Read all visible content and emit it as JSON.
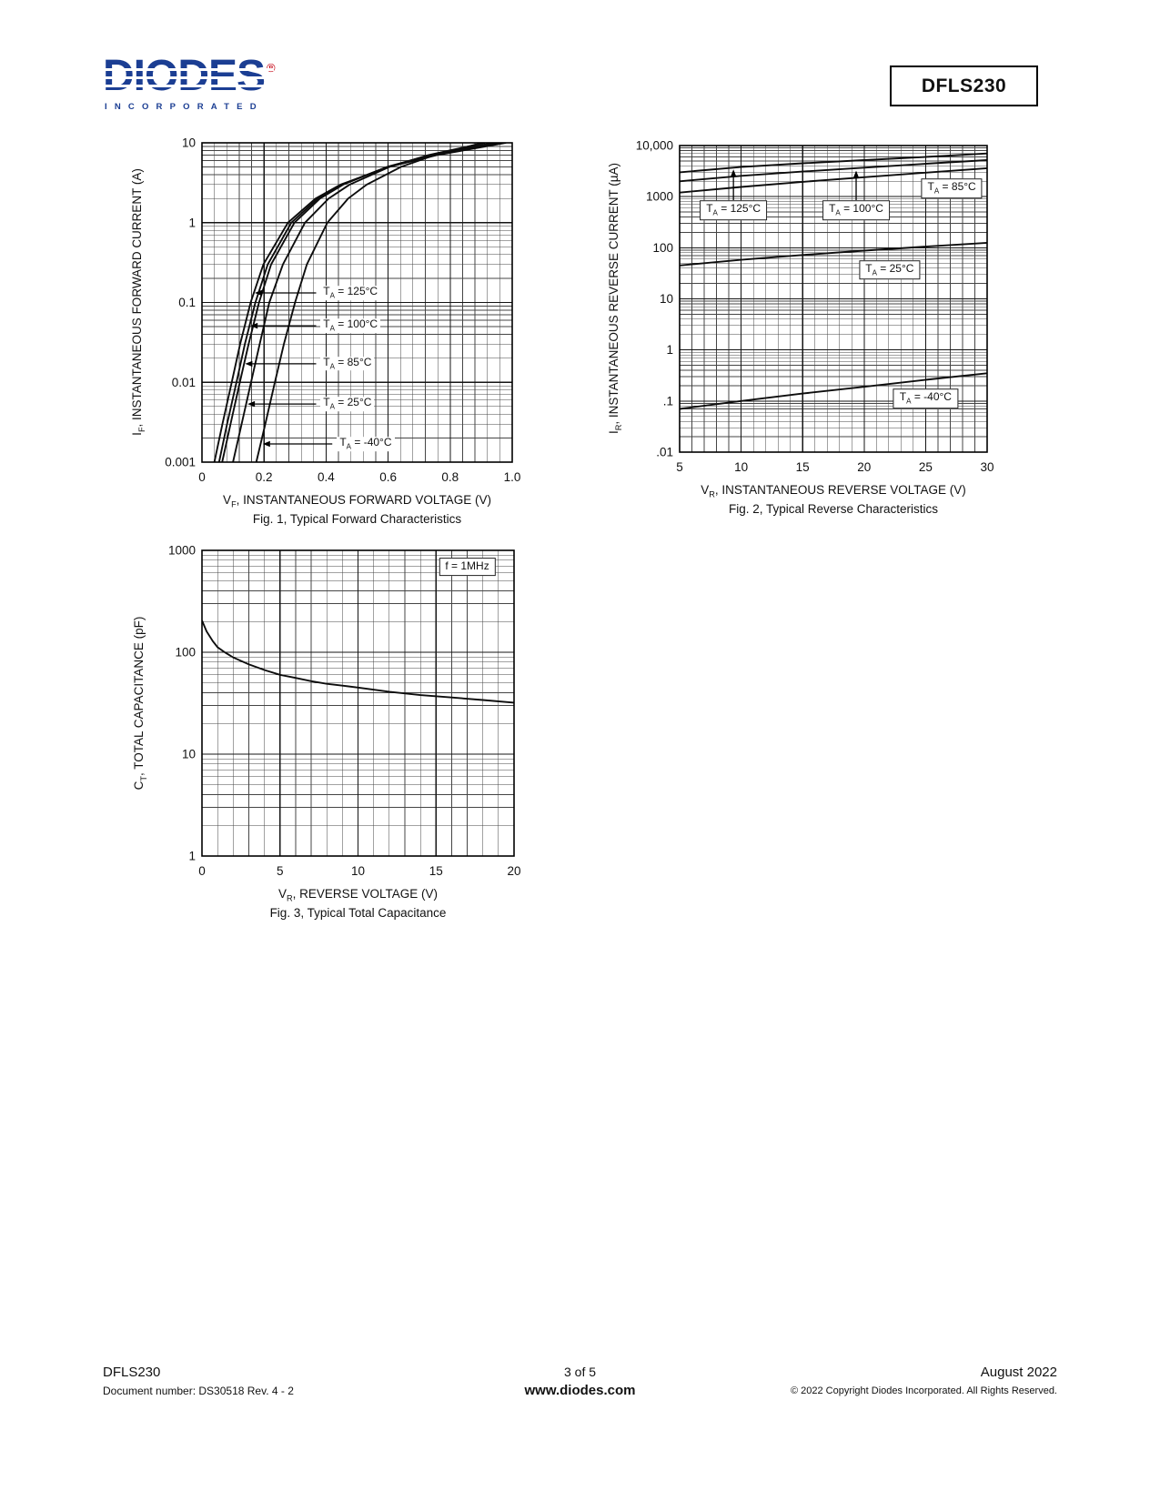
{
  "header": {
    "logo_brand": "DIODES",
    "logo_registered": "®",
    "logo_sub": "INCORPORATED",
    "part_number": "DFLS230"
  },
  "footer": {
    "part": "DFLS230",
    "doc": "Document number: DS30518 Rev. 4 - 2",
    "page": "3 of 5",
    "site": "www.diodes.com",
    "date": "August 2022",
    "copyright": "© 2022 Copyright Diodes Incorporated. All Rights Reserved."
  },
  "chart_data": [
    {
      "id": "fig1",
      "type": "line",
      "caption": "Fig. 1, Typical Forward Characteristics",
      "xlabel_parts": [
        {
          "t": "V"
        },
        {
          "t": "F",
          "sub": true
        },
        {
          "t": ", INSTANTANEOUS FORWARD VOLTAGE (V)"
        }
      ],
      "ylabel_parts": [
        {
          "t": "I"
        },
        {
          "t": "F",
          "sub": true
        },
        {
          "t": ", INSTANTANEOUS FORWARD CURRENT (A)"
        }
      ],
      "x_scale": "linear",
      "y_scale": "log",
      "xlim": [
        0,
        1.0
      ],
      "ylim": [
        0.001,
        10
      ],
      "x_minor_step": 0.04,
      "x_ticks": [
        {
          "v": 0,
          "l": "0"
        },
        {
          "v": 0.2,
          "l": "0.2"
        },
        {
          "v": 0.4,
          "l": "0.4"
        },
        {
          "v": 0.6,
          "l": "0.6"
        },
        {
          "v": 0.8,
          "l": "0.8"
        },
        {
          "v": 1.0,
          "l": "1.0"
        }
      ],
      "y_ticks": [
        {
          "v": 0.001,
          "l": "0.001"
        },
        {
          "v": 0.01,
          "l": "0.01"
        },
        {
          "v": 0.1,
          "l": "0.1"
        },
        {
          "v": 1,
          "l": "1"
        },
        {
          "v": 10,
          "l": "10"
        }
      ],
      "series": [
        {
          "name": "TA = 125°C",
          "points": [
            [
              0.04,
              0.001
            ],
            [
              0.066,
              0.003
            ],
            [
              0.096,
              0.01
            ],
            [
              0.123,
              0.03
            ],
            [
              0.157,
              0.1
            ],
            [
              0.198,
              0.3
            ],
            [
              0.277,
              1
            ],
            [
              0.366,
              2
            ],
            [
              0.447,
              3
            ],
            [
              0.603,
              5
            ],
            [
              0.756,
              7
            ],
            [
              0.98,
              10
            ]
          ]
        },
        {
          "name": "TA = 100°C",
          "points": [
            [
              0.055,
              0.001
            ],
            [
              0.081,
              0.003
            ],
            [
              0.111,
              0.01
            ],
            [
              0.138,
              0.03
            ],
            [
              0.172,
              0.1
            ],
            [
              0.212,
              0.3
            ],
            [
              0.288,
              1
            ],
            [
              0.373,
              2
            ],
            [
              0.45,
              3
            ],
            [
              0.598,
              5
            ],
            [
              0.743,
              7
            ],
            [
              0.955,
              10
            ]
          ]
        },
        {
          "name": "TA = 85°C",
          "points": [
            [
              0.065,
              0.001
            ],
            [
              0.092,
              0.003
            ],
            [
              0.122,
              0.01
            ],
            [
              0.15,
              0.03
            ],
            [
              0.184,
              0.1
            ],
            [
              0.223,
              0.3
            ],
            [
              0.298,
              1
            ],
            [
              0.38,
              2
            ],
            [
              0.455,
              3
            ],
            [
              0.597,
              5
            ],
            [
              0.735,
              7
            ],
            [
              0.939,
              10
            ]
          ]
        },
        {
          "name": "TA = 25°C",
          "points": [
            [
              0.1,
              0.001
            ],
            [
              0.128,
              0.003
            ],
            [
              0.158,
              0.01
            ],
            [
              0.186,
              0.03
            ],
            [
              0.217,
              0.1
            ],
            [
              0.261,
              0.3
            ],
            [
              0.332,
              1
            ],
            [
              0.408,
              2
            ],
            [
              0.476,
              3
            ],
            [
              0.605,
              5
            ],
            [
              0.729,
              7
            ],
            [
              0.912,
              10
            ]
          ]
        },
        {
          "name": "TA = -40°C",
          "points": [
            [
              0.175,
              0.001
            ],
            [
              0.204,
              0.003
            ],
            [
              0.235,
              0.01
            ],
            [
              0.264,
              0.03
            ],
            [
              0.3,
              0.1
            ],
            [
              0.338,
              0.3
            ],
            [
              0.404,
              1
            ],
            [
              0.471,
              2
            ],
            [
              0.531,
              3
            ],
            [
              0.642,
              5
            ],
            [
              0.749,
              7
            ],
            [
              0.905,
              10
            ]
          ]
        }
      ],
      "annotations": [
        {
          "parts": [
            {
              "t": "T"
            },
            {
              "t": "A",
              "sub": true
            },
            {
              "t": " = 125°C"
            }
          ],
          "fx": 0.382,
          "fy": 0.47,
          "anchor": "start",
          "boxed": false,
          "arrow": {
            "from": [
              0.368,
              0.47
            ],
            "to": [
              0.17,
              0.47
            ]
          }
        },
        {
          "parts": [
            {
              "t": "T"
            },
            {
              "t": "A",
              "sub": true
            },
            {
              "t": " = 100°C"
            }
          ],
          "fx": 0.382,
          "fy": 0.573,
          "anchor": "start",
          "boxed": false,
          "arrow": {
            "from": [
              0.368,
              0.573
            ],
            "to": [
              0.156,
              0.573
            ]
          }
        },
        {
          "parts": [
            {
              "t": "T"
            },
            {
              "t": "A",
              "sub": true
            },
            {
              "t": " = 85°C"
            }
          ],
          "fx": 0.382,
          "fy": 0.692,
          "anchor": "start",
          "boxed": false,
          "arrow": {
            "from": [
              0.368,
              0.692
            ],
            "to": [
              0.139,
              0.692
            ]
          }
        },
        {
          "parts": [
            {
              "t": "T"
            },
            {
              "t": "A",
              "sub": true
            },
            {
              "t": " = 25°C"
            }
          ],
          "fx": 0.382,
          "fy": 0.818,
          "anchor": "start",
          "boxed": false,
          "arrow": {
            "from": [
              0.368,
              0.818
            ],
            "to": [
              0.147,
              0.818
            ]
          }
        },
        {
          "parts": [
            {
              "t": "T"
            },
            {
              "t": "A",
              "sub": true
            },
            {
              "t": " = -40°C"
            }
          ],
          "fx": 0.435,
          "fy": 0.943,
          "anchor": "start",
          "boxed": false,
          "arrow": {
            "from": [
              0.42,
              0.943
            ],
            "to": [
              0.196,
              0.943
            ]
          }
        }
      ]
    },
    {
      "id": "fig2",
      "type": "line",
      "caption": "Fig. 2, Typical Reverse Characteristics",
      "xlabel_parts": [
        {
          "t": "V"
        },
        {
          "t": "R",
          "sub": true
        },
        {
          "t": ", INSTANTANEOUS REVERSE VOLTAGE (V)"
        }
      ],
      "ylabel_parts": [
        {
          "t": "I"
        },
        {
          "t": "R",
          "sub": true
        },
        {
          "t": ", INSTANTANEOUS REVERSE CURRENT (µA)"
        }
      ],
      "x_scale": "linear",
      "y_scale": "log",
      "xlim": [
        5,
        30
      ],
      "ylim": [
        0.01,
        10000
      ],
      "x_minor_step": 1,
      "x_ticks": [
        {
          "v": 5,
          "l": "5"
        },
        {
          "v": 10,
          "l": "10"
        },
        {
          "v": 15,
          "l": "15"
        },
        {
          "v": 20,
          "l": "20"
        },
        {
          "v": 25,
          "l": "25"
        },
        {
          "v": 30,
          "l": "30"
        }
      ],
      "y_ticks": [
        {
          "v": 10000,
          "l": "10,000"
        },
        {
          "v": 1000,
          "l": "1000"
        },
        {
          "v": 100,
          "l": "100"
        },
        {
          "v": 10,
          "l": "10"
        },
        {
          "v": 1,
          "l": "1"
        },
        {
          "v": 0.1,
          "l": ".1"
        },
        {
          "v": 0.01,
          "l": ".01"
        }
      ],
      "series": [
        {
          "name": "TA = 125°C",
          "points": [
            [
              5,
              3000
            ],
            [
              10,
              3800
            ],
            [
              15,
              4500
            ],
            [
              20,
              5200
            ],
            [
              25,
              6000
            ],
            [
              30,
              7000
            ]
          ]
        },
        {
          "name": "TA = 100°C",
          "points": [
            [
              5,
              2000
            ],
            [
              10,
              2550
            ],
            [
              15,
              3100
            ],
            [
              20,
              3700
            ],
            [
              25,
              4400
            ],
            [
              30,
              5200
            ]
          ]
        },
        {
          "name": "TA = 85°C",
          "points": [
            [
              5,
              1200
            ],
            [
              10,
              1550
            ],
            [
              15,
              1950
            ],
            [
              20,
              2400
            ],
            [
              25,
              2950
            ],
            [
              30,
              3600
            ]
          ]
        },
        {
          "name": "TA = 25°C",
          "points": [
            [
              5,
              45
            ],
            [
              10,
              58
            ],
            [
              15,
              72
            ],
            [
              20,
              88
            ],
            [
              25,
              105
            ],
            [
              30,
              125
            ]
          ]
        },
        {
          "name": "TA = -40°C",
          "points": [
            [
              5,
              0.07
            ],
            [
              10,
              0.1
            ],
            [
              15,
              0.14
            ],
            [
              20,
              0.19
            ],
            [
              25,
              0.26
            ],
            [
              30,
              0.35
            ]
          ]
        }
      ],
      "annotations": [
        {
          "parts": [
            {
              "t": "T"
            },
            {
              "t": "A",
              "sub": true
            },
            {
              "t": " = 125°C"
            }
          ],
          "fx": 0.175,
          "fy": 0.211,
          "anchor": "middle",
          "boxed": true,
          "arrow": {
            "from": [
              0.175,
              0.178
            ],
            "to": [
              0.175,
              0.078
            ]
          }
        },
        {
          "parts": [
            {
              "t": "T"
            },
            {
              "t": "A",
              "sub": true
            },
            {
              "t": " = 100°C"
            }
          ],
          "fx": 0.574,
          "fy": 0.211,
          "anchor": "middle",
          "boxed": true,
          "arrow": {
            "from": [
              0.574,
              0.178
            ],
            "to": [
              0.574,
              0.082
            ]
          }
        },
        {
          "parts": [
            {
              "t": "T"
            },
            {
              "t": "A",
              "sub": true
            },
            {
              "t": " = 85°C"
            }
          ],
          "fx": 0.885,
          "fy": 0.14,
          "anchor": "middle",
          "boxed": true
        },
        {
          "parts": [
            {
              "t": "T"
            },
            {
              "t": "A",
              "sub": true
            },
            {
              "t": " = 25°C"
            }
          ],
          "fx": 0.683,
          "fy": 0.406,
          "anchor": "middle",
          "boxed": true
        },
        {
          "parts": [
            {
              "t": "T"
            },
            {
              "t": "A",
              "sub": true
            },
            {
              "t": " = -40°C"
            }
          ],
          "fx": 0.8,
          "fy": 0.825,
          "anchor": "middle",
          "boxed": true
        }
      ]
    },
    {
      "id": "fig3",
      "type": "line",
      "caption": "Fig. 3, Typical Total Capacitance",
      "xlabel_parts": [
        {
          "t": "V"
        },
        {
          "t": "R",
          "sub": true
        },
        {
          "t": ", REVERSE VOLTAGE (V)"
        }
      ],
      "ylabel_parts": [
        {
          "t": "C"
        },
        {
          "t": "T",
          "sub": true
        },
        {
          "t": ", TOTAL CAPACITANCE (pF)"
        }
      ],
      "x_scale": "linear",
      "y_scale": "log",
      "xlim": [
        0,
        20
      ],
      "ylim": [
        1,
        1000
      ],
      "x_minor_step": 1,
      "x_ticks": [
        {
          "v": 0,
          "l": "0"
        },
        {
          "v": 5,
          "l": "5"
        },
        {
          "v": 10,
          "l": "10"
        },
        {
          "v": 15,
          "l": "15"
        },
        {
          "v": 20,
          "l": "20"
        }
      ],
      "y_ticks": [
        {
          "v": 1000,
          "l": "1000"
        },
        {
          "v": 100,
          "l": "100"
        },
        {
          "v": 10,
          "l": "10"
        },
        {
          "v": 1,
          "l": "1"
        }
      ],
      "series": [
        {
          "name": "CT",
          "points": [
            [
              0,
              205
            ],
            [
              0.3,
              160
            ],
            [
              0.7,
              128
            ],
            [
              1,
              112
            ],
            [
              1.5,
              99
            ],
            [
              2,
              89
            ],
            [
              3,
              76
            ],
            [
              4,
              67
            ],
            [
              5,
              60
            ],
            [
              6,
              56
            ],
            [
              7,
              52
            ],
            [
              8,
              49
            ],
            [
              9,
              47
            ],
            [
              10,
              45
            ],
            [
              12,
              41
            ],
            [
              14,
              38
            ],
            [
              16,
              36
            ],
            [
              18,
              34
            ],
            [
              20,
              32
            ]
          ]
        }
      ],
      "annotations": [
        {
          "parts": [
            {
              "t": "f = 1MHz"
            }
          ],
          "fx": 0.85,
          "fy": 0.055,
          "anchor": "middle",
          "boxed": true
        }
      ]
    }
  ]
}
